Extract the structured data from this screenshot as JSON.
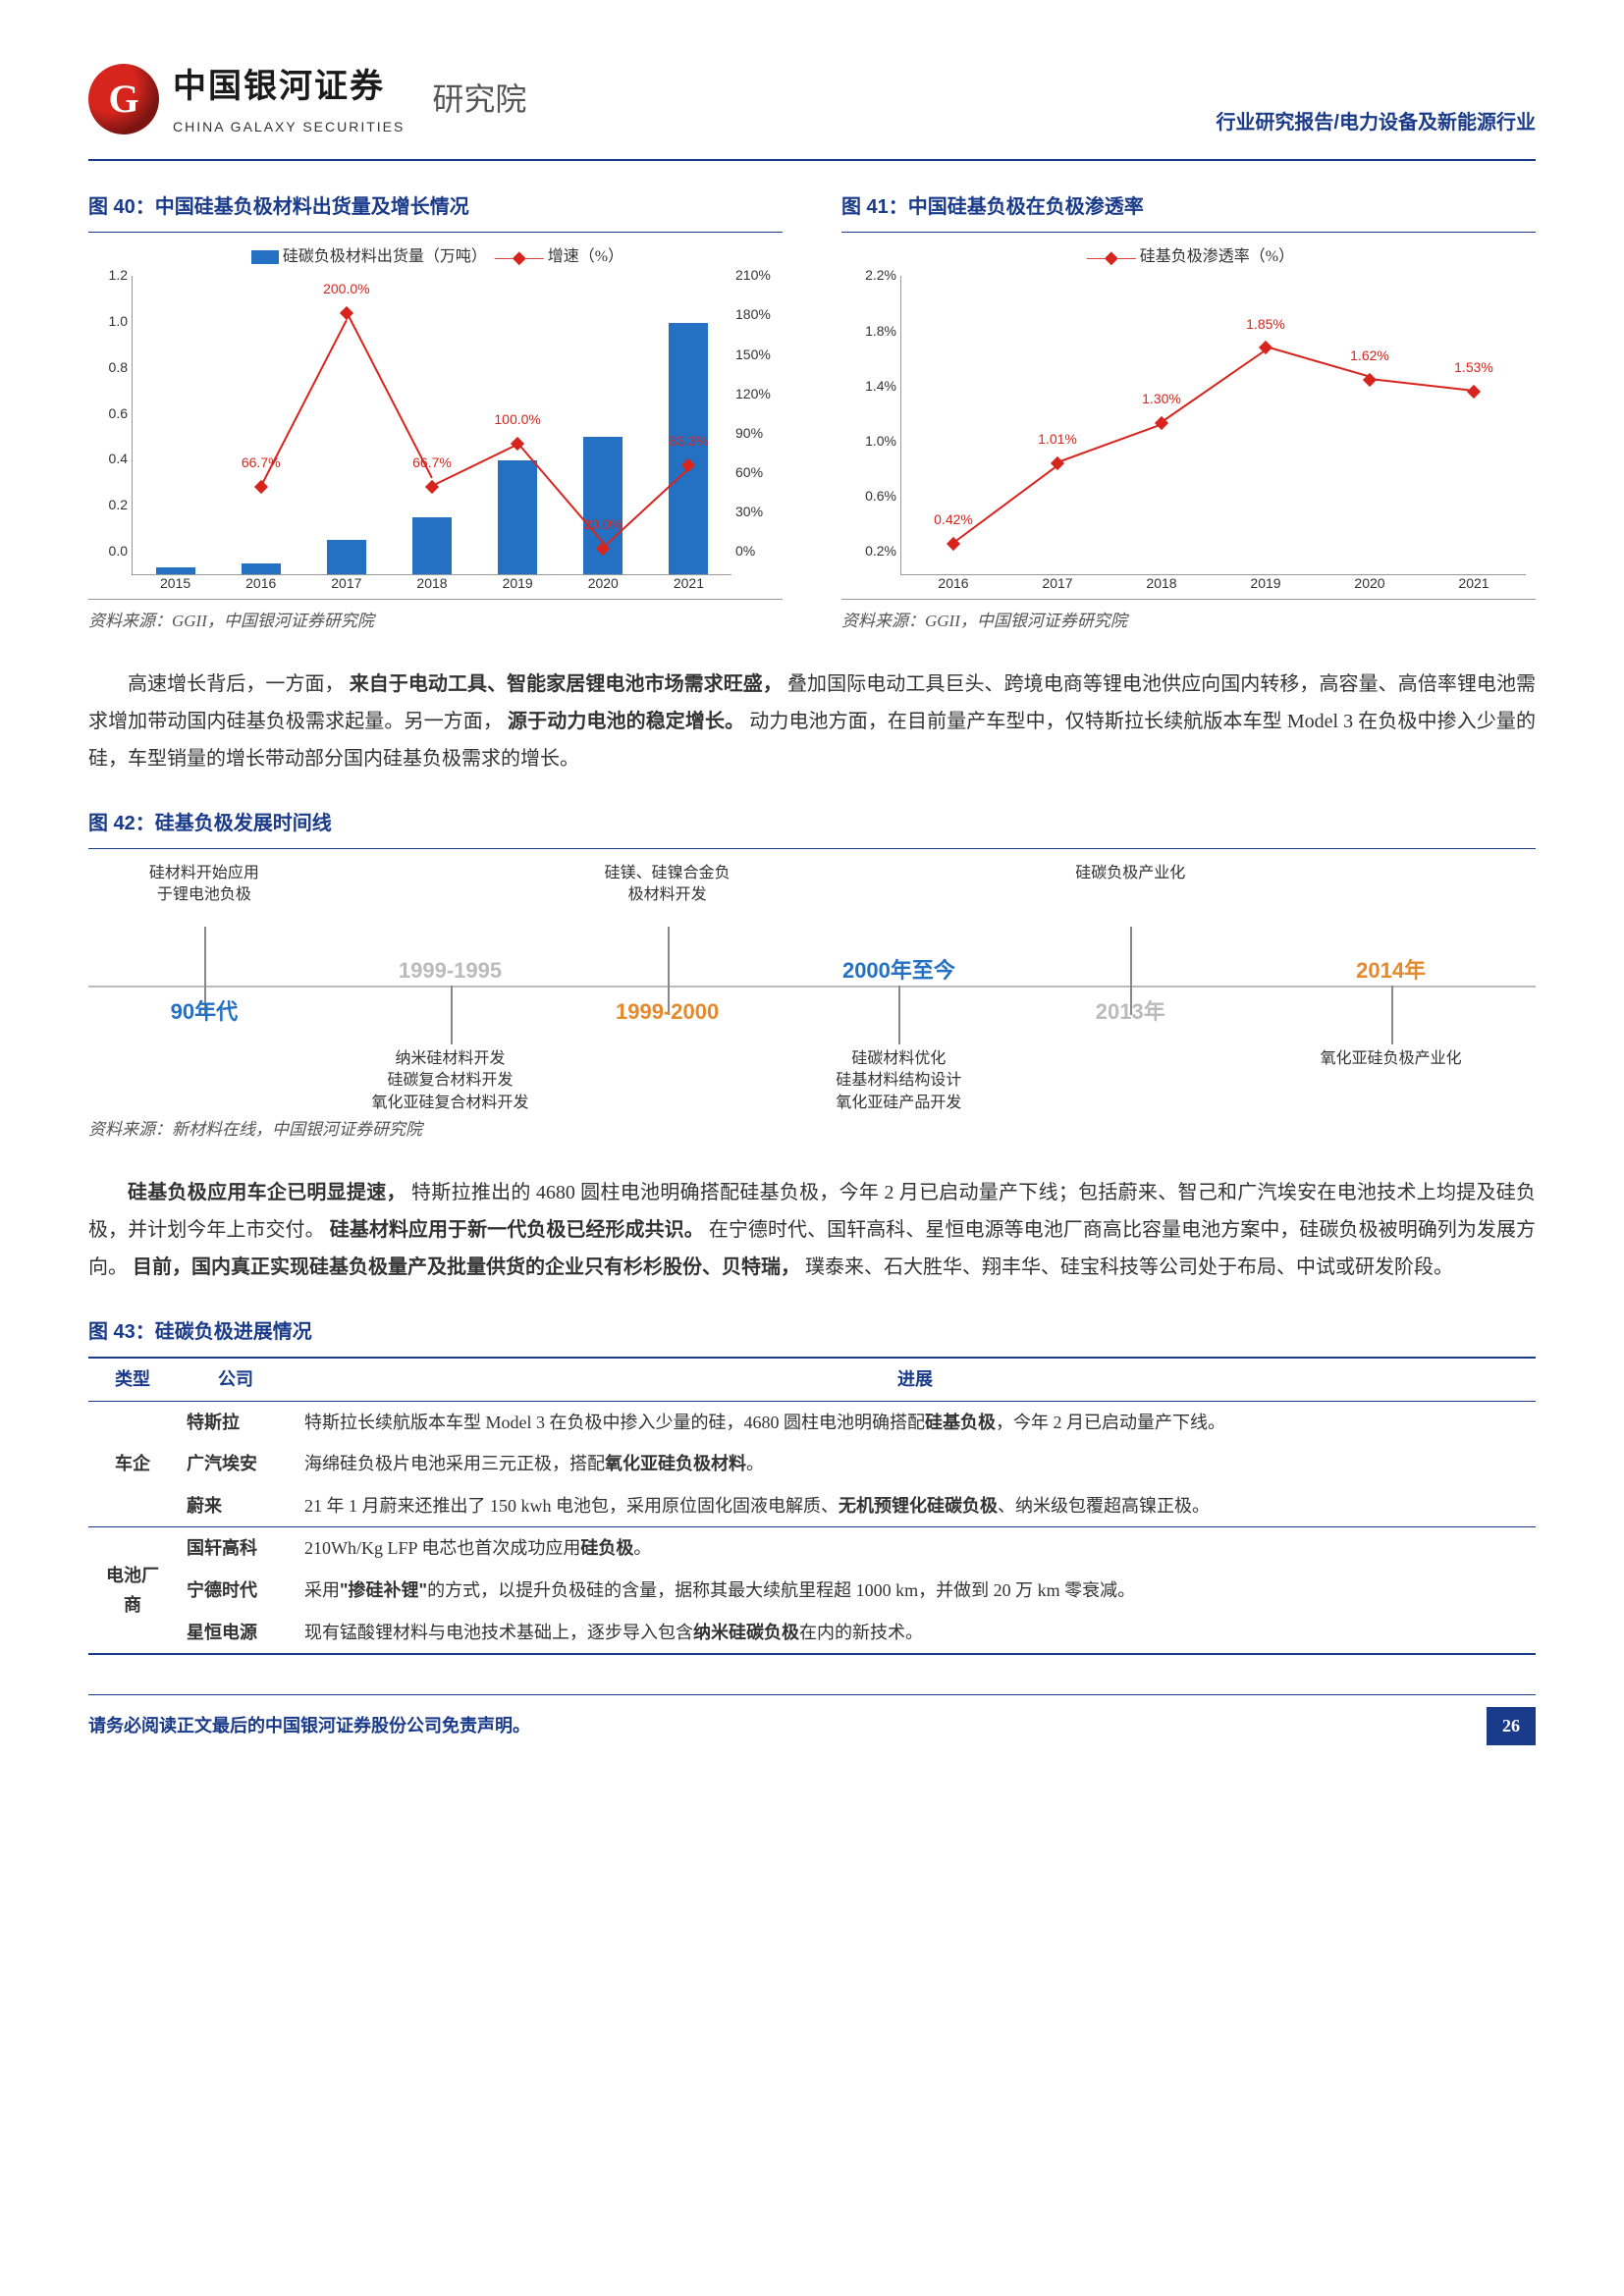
{
  "header": {
    "company_cn": "中国银河证券",
    "company_en": "CHINA GALAXY SECURITIES",
    "institute": "研究院",
    "report_tag": "行业研究报告/电力设备及新能源行业"
  },
  "chart40": {
    "title": "图 40：中国硅基负极材料出货量及增长情况",
    "legend_bar": "硅碳负极材料出货量（万吨）",
    "legend_line": "增速（%）",
    "years": [
      "2015",
      "2016",
      "2017",
      "2018",
      "2019",
      "2020",
      "2021"
    ],
    "bars": [
      0.03,
      0.05,
      0.15,
      0.25,
      0.5,
      0.6,
      1.1
    ],
    "bar_ymax": 1.2,
    "bar_step": 0.2,
    "line": [
      null,
      66.7,
      200.0,
      66.7,
      100.0,
      20.0,
      83.3
    ],
    "line_labels": [
      null,
      "66.7%",
      "200.0%",
      "66.7%",
      "100.0%",
      "20.0%",
      "83.3%"
    ],
    "line_ymax": 210,
    "line_step": 30,
    "bar_color": "#2471c4",
    "line_color": "#d7251e",
    "source": "资料来源：GGII，中国银河证券研究院"
  },
  "chart41": {
    "title": "图 41：中国硅基负极在负极渗透率",
    "legend_line": "硅基负极渗透率（%）",
    "years": [
      "2016",
      "2017",
      "2018",
      "2019",
      "2020",
      "2021"
    ],
    "line": [
      0.42,
      1.01,
      1.3,
      1.85,
      1.62,
      1.53
    ],
    "line_labels": [
      "0.42%",
      "1.01%",
      "1.30%",
      "1.85%",
      "1.62%",
      "1.53%"
    ],
    "ymin": 0.2,
    "ymax": 2.2,
    "ystep": 0.4,
    "line_color": "#d7251e",
    "source": "资料来源：GGII，中国银河证券研究院"
  },
  "para1_a": "高速增长背后，一方面，",
  "para1_b": "来自于电动工具、智能家居锂电池市场需求旺盛，",
  "para1_c": "叠加国际电动工具巨头、跨境电商等锂电池供应向国内转移，高容量、高倍率锂电池需求增加带动国内硅基负极需求起量。另一方面，",
  "para1_d": "源于动力电池的稳定增长。",
  "para1_e": "动力电池方面，在目前量产车型中，仅特斯拉长续航版本车型 Model 3 在负极中掺入少量的硅，车型销量的增长带动部分国内硅基负极需求的增长。",
  "chart42": {
    "title": "图 42：硅基负极发展时间线",
    "source": "资料来源：新材料在线，中国银河证券研究院",
    "items": [
      {
        "x": 8,
        "top": "硅材料开始应用\n于锂电池负极",
        "bot": "",
        "era": "90年代",
        "era_cls": "blue",
        "era_y": "bottom"
      },
      {
        "x": 25,
        "top": "",
        "bot": "纳米硅材料开发\n硅碳复合材料开发\n氧化亚硅复合材料开发",
        "era": "1999-1995",
        "era_cls": "gray",
        "era_y": "top"
      },
      {
        "x": 40,
        "top": "硅镁、硅镍合金负\n极材料开发",
        "bot": "",
        "era": "1999-2000",
        "era_cls": "orange",
        "era_y": "bottom"
      },
      {
        "x": 56,
        "top": "",
        "bot": "硅碳材料优化\n硅基材料结构设计\n氧化亚硅产品开发",
        "era": "2000年至今",
        "era_cls": "blue",
        "era_y": "top"
      },
      {
        "x": 72,
        "top": "硅碳负极产业化",
        "bot": "",
        "era": "2013年",
        "era_cls": "gray",
        "era_y": "bottom"
      },
      {
        "x": 90,
        "top": "",
        "bot": "氧化亚硅负极产业化",
        "era": "2014年",
        "era_cls": "orange",
        "era_y": "top"
      }
    ]
  },
  "para2_a": "硅基负极应用车企已明显提速，",
  "para2_b": "特斯拉推出的 4680 圆柱电池明确搭配硅基负极，今年 2 月已启动量产下线；包括蔚来、智己和广汽埃安在电池技术上均提及硅负极，并计划今年上市交付。",
  "para2_c": "硅基材料应用于新一代负极已经形成共识。",
  "para2_d": "在宁德时代、国轩高科、星恒电源等电池厂商高比容量电池方案中，硅碳负极被明确列为发展方向。",
  "para2_e": "目前，国内真正实现硅基负极量产及批量供货的企业只有杉杉股份、贝特瑞，",
  "para2_f": "璞泰来、石大胜华、翔丰华、硅宝科技等公司处于布局、中试或研发阶段。",
  "chart43": {
    "title": "图 43：硅碳负极进展情况",
    "headers": [
      "类型",
      "公司",
      "进展"
    ],
    "groups": [
      {
        "cat": "车企",
        "rows": [
          {
            "co": "特斯拉",
            "desc_a": "特斯拉长续航版本车型 Model 3 在负极中掺入少量的硅，4680 圆柱电池明确搭配",
            "desc_b": "硅基负极",
            "desc_c": "，今年 2 月已启动量产下线。"
          },
          {
            "co": "广汽埃安",
            "desc_a": "海绵硅负极片电池采用三元正极，搭配",
            "desc_b": "氧化亚硅负极材料",
            "desc_c": "。"
          },
          {
            "co": "蔚来",
            "desc_a": "21 年 1 月蔚来还推出了 150 kwh 电池包，采用原位固化固液电解质、",
            "desc_b": "无机预锂化硅碳负极",
            "desc_c": "、纳米级包覆超高镍正极。"
          }
        ]
      },
      {
        "cat": "电池厂商",
        "rows": [
          {
            "co": "国轩高科",
            "desc_a": "210Wh/Kg LFP 电芯也首次成功应用",
            "desc_b": "硅负极",
            "desc_c": "。"
          },
          {
            "co": "宁德时代",
            "desc_a": "采用",
            "desc_b": "\"掺硅补锂\"",
            "desc_c": "的方式，以提升负极硅的含量，据称其最大续航里程超 1000 km，并做到 20 万 km 零衰减。"
          },
          {
            "co": "星恒电源",
            "desc_a": "现有锰酸锂材料与电池技术基础上，逐步导入包含",
            "desc_b": "纳米硅碳负极",
            "desc_c": "在内的新技术。"
          }
        ]
      }
    ]
  },
  "footer": {
    "disclaimer": "请务必阅读正文最后的中国银河证券股份公司免责声明。",
    "page": "26"
  }
}
